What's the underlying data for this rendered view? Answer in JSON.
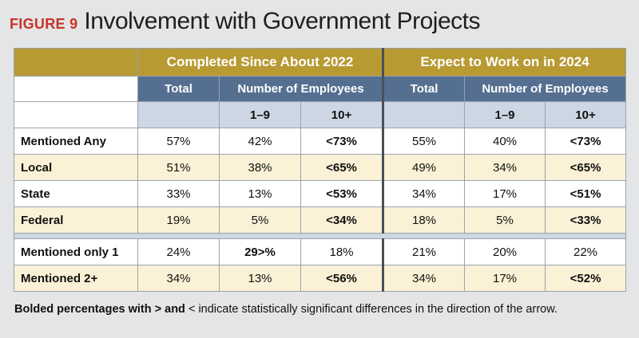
{
  "figure": {
    "label": "FIGURE 9",
    "title": "Involvement with Government Projects"
  },
  "groups": {
    "completed": "Completed Since About 2022",
    "expect": "Expect to Work on in 2024"
  },
  "subheaders": {
    "total": "Total",
    "employees": "Number of Employees",
    "small": "1–9",
    "large": "10+"
  },
  "rows": [
    {
      "label": "Mentioned Any",
      "cells": [
        "57%",
        "42%",
        "<73%",
        "55%",
        "40%",
        "<73%"
      ]
    },
    {
      "label": "Local",
      "cells": [
        "51%",
        "38%",
        "<65%",
        "49%",
        "34%",
        "<65%"
      ]
    },
    {
      "label": "State",
      "cells": [
        "33%",
        "13%",
        "<53%",
        "34%",
        "17%",
        "<51%"
      ]
    },
    {
      "label": "Federal",
      "cells": [
        "19%",
        "5%",
        "<34%",
        "18%",
        "5%",
        "<33%"
      ]
    }
  ],
  "rows2": [
    {
      "label": "Mentioned only 1",
      "cells": [
        "24%",
        "29>%",
        "18%",
        "21%",
        "20%",
        "22%"
      ]
    },
    {
      "label": "Mentioned 2+",
      "cells": [
        "34%",
        "13%",
        "<56%",
        "34%",
        "17%",
        "<52%"
      ]
    }
  ],
  "footnote": {
    "bold_part": "Bolded percentages with > and",
    "rest": "< indicate statistically significant differences in the direction of the arrow."
  },
  "colors": {
    "header_gold": "#b89a33",
    "header_blue": "#556f91",
    "light_blue": "#cdd6e3",
    "row_cream": "#fbf1d6",
    "figure_label_red": "#c8342a"
  }
}
